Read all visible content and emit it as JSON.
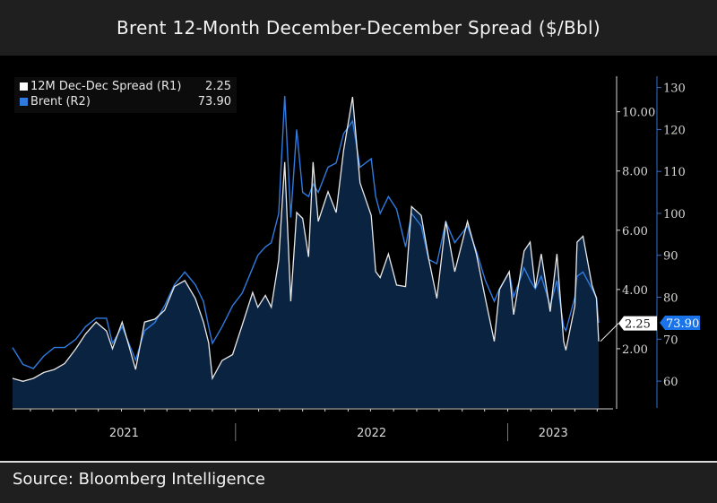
{
  "title": "Brent 12-Month December-December Spread ($/Bbl)",
  "source": "Source: Bloomberg Intelligence",
  "chart_data": {
    "type": "line",
    "title": "Brent 12-Month December-December Spread ($/Bbl)",
    "legend_position": "top-left",
    "grid": false,
    "x_tick_labels": [
      "2021",
      "2022",
      "2023"
    ],
    "x_range": [
      "2021-03-08",
      "2023-05-03"
    ],
    "axes": {
      "R1": {
        "ylim": [
          0,
          11.2
        ],
        "ticks": [
          "2.00",
          "4.00",
          "6.00",
          "8.00",
          "10.00"
        ],
        "tick_values": [
          2,
          4,
          6,
          8,
          10
        ]
      },
      "R2": {
        "ylim": [
          53.6,
          132.7
        ],
        "ticks": [
          "60",
          "70",
          "80",
          "90",
          "100",
          "110",
          "120",
          "130"
        ],
        "tick_values": [
          60,
          70,
          80,
          90,
          100,
          110,
          120,
          130
        ]
      }
    },
    "series": [
      {
        "name": "12M Dec-Dec Spread (R1)",
        "axis": "R1",
        "color": "#ffffff",
        "last_value": "2.25",
        "filled": true
      },
      {
        "name": "Brent (R2)",
        "axis": "R2",
        "color": "#2f7be0",
        "last_value": "73.90",
        "filled": false
      }
    ],
    "dates": [
      "2021-03-08",
      "2021-03-22",
      "2021-04-05",
      "2021-04-19",
      "2021-05-03",
      "2021-05-17",
      "2021-06-01",
      "2021-06-14",
      "2021-06-28",
      "2021-07-12",
      "2021-07-20",
      "2021-08-02",
      "2021-08-20",
      "2021-09-01",
      "2021-09-15",
      "2021-09-28",
      "2021-10-11",
      "2021-10-25",
      "2021-11-08",
      "2021-11-19",
      "2021-11-26",
      "2021-12-01",
      "2021-12-14",
      "2021-12-28",
      "2022-01-10",
      "2022-01-24",
      "2022-01-31",
      "2022-02-10",
      "2022-02-18",
      "2022-02-28",
      "2022-03-08",
      "2022-03-16",
      "2022-03-24",
      "2022-04-01",
      "2022-04-09",
      "2022-04-15",
      "2022-04-22",
      "2022-05-05",
      "2022-05-16",
      "2022-05-26",
      "2022-06-07",
      "2022-06-17",
      "2022-07-02",
      "2022-07-08",
      "2022-07-14",
      "2022-07-25",
      "2022-08-05",
      "2022-08-17",
      "2022-08-25",
      "2022-09-07",
      "2022-09-17",
      "2022-09-28",
      "2022-10-10",
      "2022-10-22",
      "2022-11-08",
      "2022-11-20",
      "2022-12-02",
      "2022-12-14",
      "2022-12-21",
      "2023-01-03",
      "2023-01-09",
      "2023-01-23",
      "2023-01-31",
      "2023-02-07",
      "2023-02-15",
      "2023-02-27",
      "2023-03-08",
      "2023-03-17",
      "2023-03-20",
      "2023-04-01",
      "2023-04-04",
      "2023-04-12",
      "2023-04-24",
      "2023-04-30",
      "2023-05-03"
    ],
    "spread": [
      1.0,
      0.9,
      1.0,
      1.2,
      1.3,
      1.5,
      2.0,
      2.5,
      2.9,
      2.6,
      2.0,
      2.9,
      1.3,
      2.9,
      3.0,
      3.3,
      4.1,
      4.3,
      3.7,
      2.9,
      2.2,
      1.0,
      1.6,
      1.8,
      2.8,
      3.9,
      3.4,
      3.8,
      3.4,
      5.0,
      8.3,
      3.6,
      6.6,
      6.4,
      5.1,
      8.3,
      6.3,
      7.3,
      6.6,
      8.7,
      10.5,
      7.6,
      6.5,
      4.6,
      4.4,
      5.2,
      4.15,
      4.1,
      6.8,
      6.5,
      5.05,
      3.7,
      6.3,
      4.6,
      6.3,
      5.2,
      3.7,
      2.25,
      4.0,
      4.6,
      3.15,
      5.3,
      5.6,
      4.05,
      5.2,
      3.25,
      5.2,
      2.25,
      1.95,
      3.45,
      5.6,
      5.8,
      4.15,
      3.7,
      2.25
    ],
    "brent": [
      68,
      64,
      63,
      66,
      68,
      68,
      70,
      73,
      75,
      75,
      69,
      73,
      65,
      72,
      74,
      78,
      83,
      86,
      83,
      79,
      73,
      69,
      73,
      78,
      81,
      87,
      90,
      92,
      93,
      100,
      128,
      99,
      120,
      105,
      104,
      107,
      105,
      111,
      112,
      119,
      122,
      111,
      113,
      104,
      100,
      104,
      101,
      92,
      100,
      97,
      89,
      88,
      98,
      93,
      97,
      91,
      84,
      79,
      82,
      86,
      80,
      87,
      84,
      82,
      85,
      78,
      84,
      73,
      72,
      80,
      85,
      86,
      82,
      80,
      73.9
    ]
  }
}
